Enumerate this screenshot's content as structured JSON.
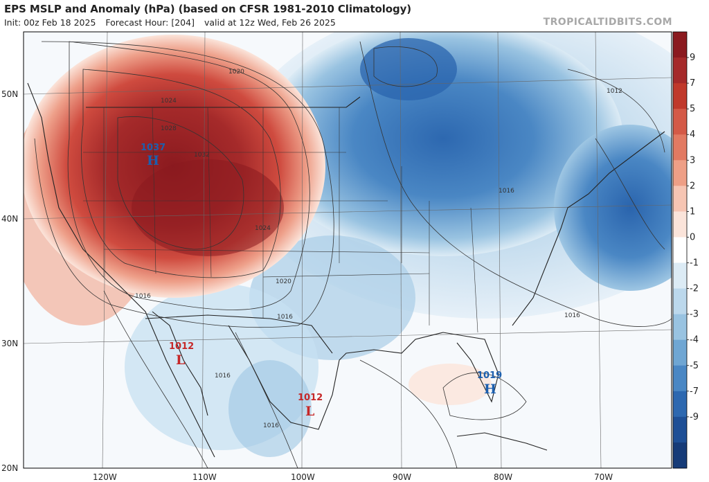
{
  "header": {
    "title": "EPS MSLP and Anomaly (hPa) (based on CFSR 1981-2010 Climatology)",
    "init": "Init: 00z Feb 18 2025",
    "forecast_hour": "Forecast Hour: [204]",
    "valid": "valid at 12z Wed, Feb 26 2025",
    "brand": "TROPICALTIDBITS.COM"
  },
  "map": {
    "lat_labels": [
      "50N",
      "40N",
      "30N",
      "20N"
    ],
    "lon_labels": [
      "120W",
      "110W",
      "100W",
      "90W",
      "80W",
      "70W"
    ],
    "isobar_labels": [
      "1020",
      "1024",
      "1028",
      "1032",
      "1016",
      "1012"
    ],
    "pressure_systems": [
      {
        "name": "high-west",
        "value": "1037",
        "letter": "H",
        "color": "#1c5fae"
      },
      {
        "name": "low-baja",
        "value": "1012",
        "letter": "L",
        "color": "#c62828"
      },
      {
        "name": "low-mexico",
        "value": "1012",
        "letter": "L",
        "color": "#c62828"
      },
      {
        "name": "high-florida",
        "value": "1019",
        "letter": "H",
        "color": "#1c5fae"
      }
    ]
  },
  "colorbar": {
    "labels": [
      "9",
      "7",
      "5",
      "4",
      "3",
      "2",
      "1",
      "0",
      "-1",
      "-2",
      "-3",
      "-4",
      "-5",
      "-7",
      "-9"
    ],
    "colors": [
      "#8b1a1f",
      "#a52a2a",
      "#c0392b",
      "#d45a47",
      "#e27a62",
      "#ee9f86",
      "#f6c5b3",
      "#fbe4da",
      "#ffffff",
      "#dcebf5",
      "#bcd8ec",
      "#99c3e1",
      "#6fa6d3",
      "#4a87c4",
      "#2d68b0",
      "#1e4f96",
      "#163b78"
    ]
  }
}
